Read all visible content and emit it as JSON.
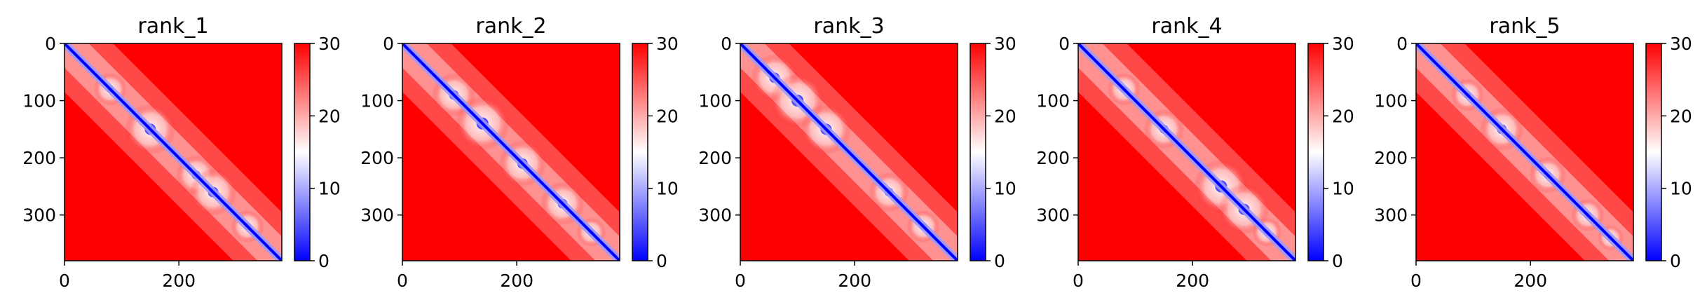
{
  "chart_data": [
    {
      "type": "heatmap",
      "title": "rank_1",
      "x_ticks": [
        0,
        200
      ],
      "y_ticks": [
        0,
        100,
        200,
        300
      ],
      "xlim": [
        0,
        380
      ],
      "ylim": [
        380,
        0
      ],
      "colorbar": {
        "range": [
          0,
          30
        ],
        "ticks": [
          0,
          10,
          20,
          30
        ],
        "colors": [
          "#0000ff",
          "#ffffff",
          "#ff0000"
        ]
      },
      "diagonal_domains": [
        [
          80,
          18
        ],
        [
          150,
          28
        ],
        [
          230,
          22
        ],
        [
          260,
          26
        ],
        [
          320,
          18
        ]
      ]
    },
    {
      "type": "heatmap",
      "title": "rank_2",
      "x_ticks": [
        0,
        200
      ],
      "y_ticks": [
        0,
        100,
        200,
        300
      ],
      "xlim": [
        0,
        380
      ],
      "ylim": [
        380,
        0
      ],
      "colorbar": {
        "range": [
          0,
          30
        ],
        "ticks": [
          0,
          10,
          20,
          30
        ],
        "colors": [
          "#0000ff",
          "#ffffff",
          "#ff0000"
        ]
      },
      "diagonal_domains": [
        [
          90,
          24
        ],
        [
          140,
          30
        ],
        [
          210,
          26
        ],
        [
          280,
          24
        ],
        [
          330,
          16
        ]
      ]
    },
    {
      "type": "heatmap",
      "title": "rank_3",
      "x_ticks": [
        0,
        200
      ],
      "y_ticks": [
        0,
        100,
        200,
        300
      ],
      "xlim": [
        0,
        380
      ],
      "ylim": [
        380,
        0
      ],
      "colorbar": {
        "range": [
          0,
          30
        ],
        "ticks": [
          0,
          10,
          20,
          30
        ],
        "colors": [
          "#0000ff",
          "#ffffff",
          "#ff0000"
        ]
      },
      "diagonal_domains": [
        [
          60,
          26
        ],
        [
          100,
          30
        ],
        [
          150,
          28
        ],
        [
          260,
          22
        ],
        [
          320,
          18
        ]
      ]
    },
    {
      "type": "heatmap",
      "title": "rank_4",
      "x_ticks": [
        0,
        200
      ],
      "y_ticks": [
        0,
        100,
        200,
        300
      ],
      "xlim": [
        0,
        380
      ],
      "ylim": [
        380,
        0
      ],
      "colorbar": {
        "range": [
          0,
          30
        ],
        "ticks": [
          0,
          10,
          20,
          30
        ],
        "colors": [
          "#0000ff",
          "#ffffff",
          "#ff0000"
        ]
      },
      "diagonal_domains": [
        [
          80,
          18
        ],
        [
          150,
          22
        ],
        [
          250,
          30
        ],
        [
          290,
          28
        ],
        [
          330,
          16
        ]
      ]
    },
    {
      "type": "heatmap",
      "title": "rank_5",
      "x_ticks": [
        0,
        200
      ],
      "y_ticks": [
        0,
        100,
        200,
        300
      ],
      "xlim": [
        0,
        380
      ],
      "ylim": [
        380,
        0
      ],
      "colorbar": {
        "range": [
          0,
          30
        ],
        "ticks": [
          0,
          10,
          20,
          30
        ],
        "colors": [
          "#0000ff",
          "#ffffff",
          "#ff0000"
        ]
      },
      "diagonal_domains": [
        [
          90,
          18
        ],
        [
          150,
          24
        ],
        [
          230,
          20
        ],
        [
          300,
          18
        ],
        [
          340,
          14
        ]
      ]
    }
  ]
}
